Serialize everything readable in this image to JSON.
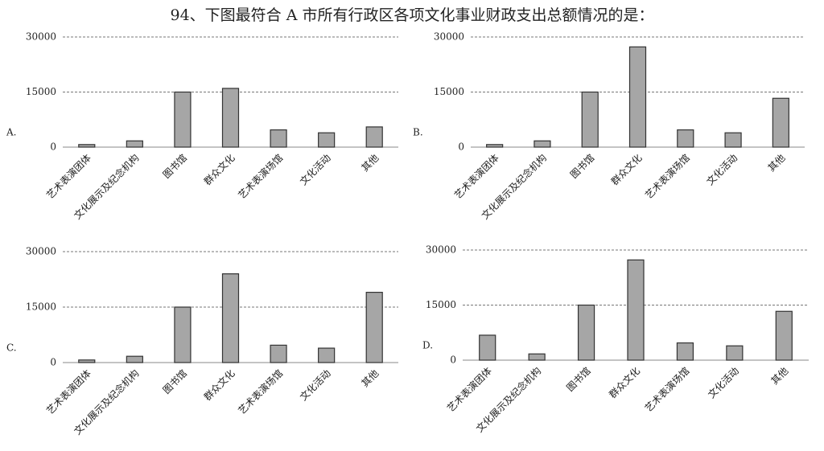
{
  "question": "94、下图最符合 A 市所有行政区各项文化事业财政支出总额情况的是：",
  "chart_data": [
    {
      "type": "bar",
      "label": "A.",
      "categories": [
        "艺术表演团体",
        "文化展示及纪念机构",
        "图书馆",
        "群众文化",
        "艺术表演场馆",
        "文化活动",
        "其他"
      ],
      "values": [
        700,
        1700,
        15000,
        16000,
        4700,
        3900,
        5500
      ],
      "color": "#a6a6a6",
      "ylim": [
        0,
        30000
      ],
      "yticks": [
        0,
        15000,
        30000
      ],
      "grid": true
    },
    {
      "type": "bar",
      "label": "B.",
      "categories": [
        "艺术表演团体",
        "文化展示及纪念机构",
        "图书馆",
        "群众文化",
        "艺术表演场馆",
        "文化活动",
        "其他"
      ],
      "values": [
        700,
        1700,
        15000,
        27300,
        4700,
        3900,
        13300
      ],
      "color": "#a6a6a6",
      "ylim": [
        0,
        30000
      ],
      "yticks": [
        0,
        15000,
        30000
      ],
      "grid": true
    },
    {
      "type": "bar",
      "label": "C.",
      "categories": [
        "艺术表演团体",
        "文化展示及纪念机构",
        "图书馆",
        "群众文化",
        "艺术表演场馆",
        "文化活动",
        "其他"
      ],
      "values": [
        700,
        1700,
        15000,
        24000,
        4700,
        3900,
        19000
      ],
      "color": "#a6a6a6",
      "ylim": [
        0,
        30000
      ],
      "yticks": [
        0,
        15000,
        30000
      ],
      "grid": true
    },
    {
      "type": "bar",
      "label": "D.",
      "categories": [
        "艺术表演团体",
        "文化展示及纪念机构",
        "图书馆",
        "群众文化",
        "艺术表演场馆",
        "文化活动",
        "其他"
      ],
      "values": [
        6800,
        1700,
        15000,
        27300,
        4700,
        3900,
        13300
      ],
      "color": "#a6a6a6",
      "ylim": [
        0,
        30000
      ],
      "yticks": [
        0,
        15000,
        30000
      ],
      "grid": true
    }
  ]
}
